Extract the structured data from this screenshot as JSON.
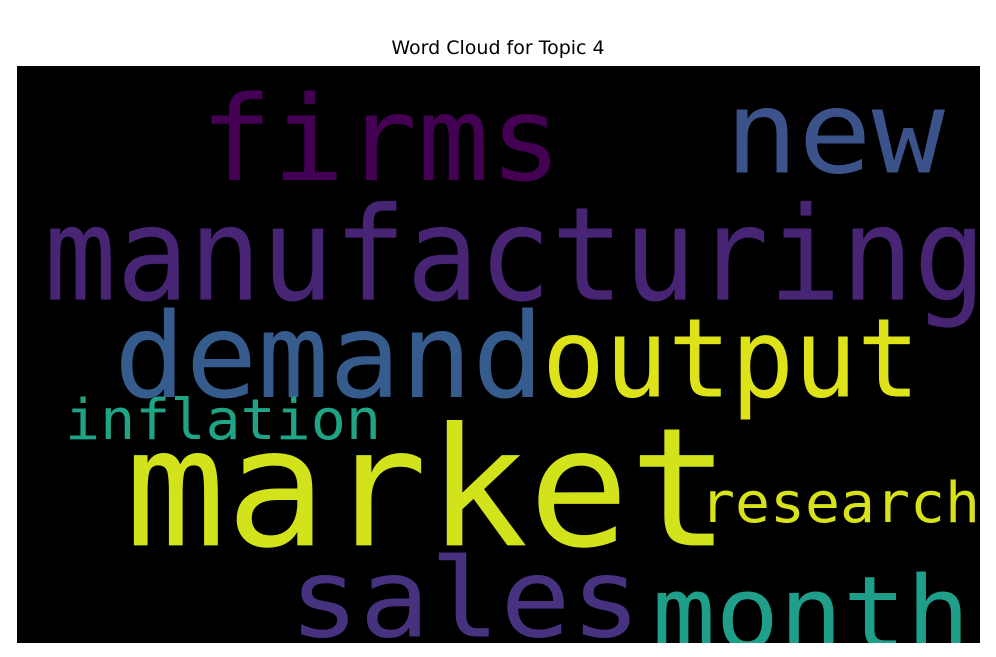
{
  "title": "Word Cloud for Topic 4",
  "chart_data": {
    "type": "word-cloud",
    "title": "Word Cloud for Topic 4",
    "background": "#000000",
    "colormap": "viridis",
    "words": [
      {
        "text": "market",
        "color": "#d2e21b"
      },
      {
        "text": "manufacturing",
        "color": "#482475"
      },
      {
        "text": "demand",
        "color": "#365c8d"
      },
      {
        "text": "firms",
        "color": "#440154"
      },
      {
        "text": "output",
        "color": "#dde318"
      },
      {
        "text": "sales",
        "color": "#46327e"
      },
      {
        "text": "month",
        "color": "#1f9e89"
      },
      {
        "text": "new",
        "color": "#3b528b"
      },
      {
        "text": "inflation",
        "color": "#20a486"
      },
      {
        "text": "research",
        "color": "#d8e219"
      }
    ]
  }
}
